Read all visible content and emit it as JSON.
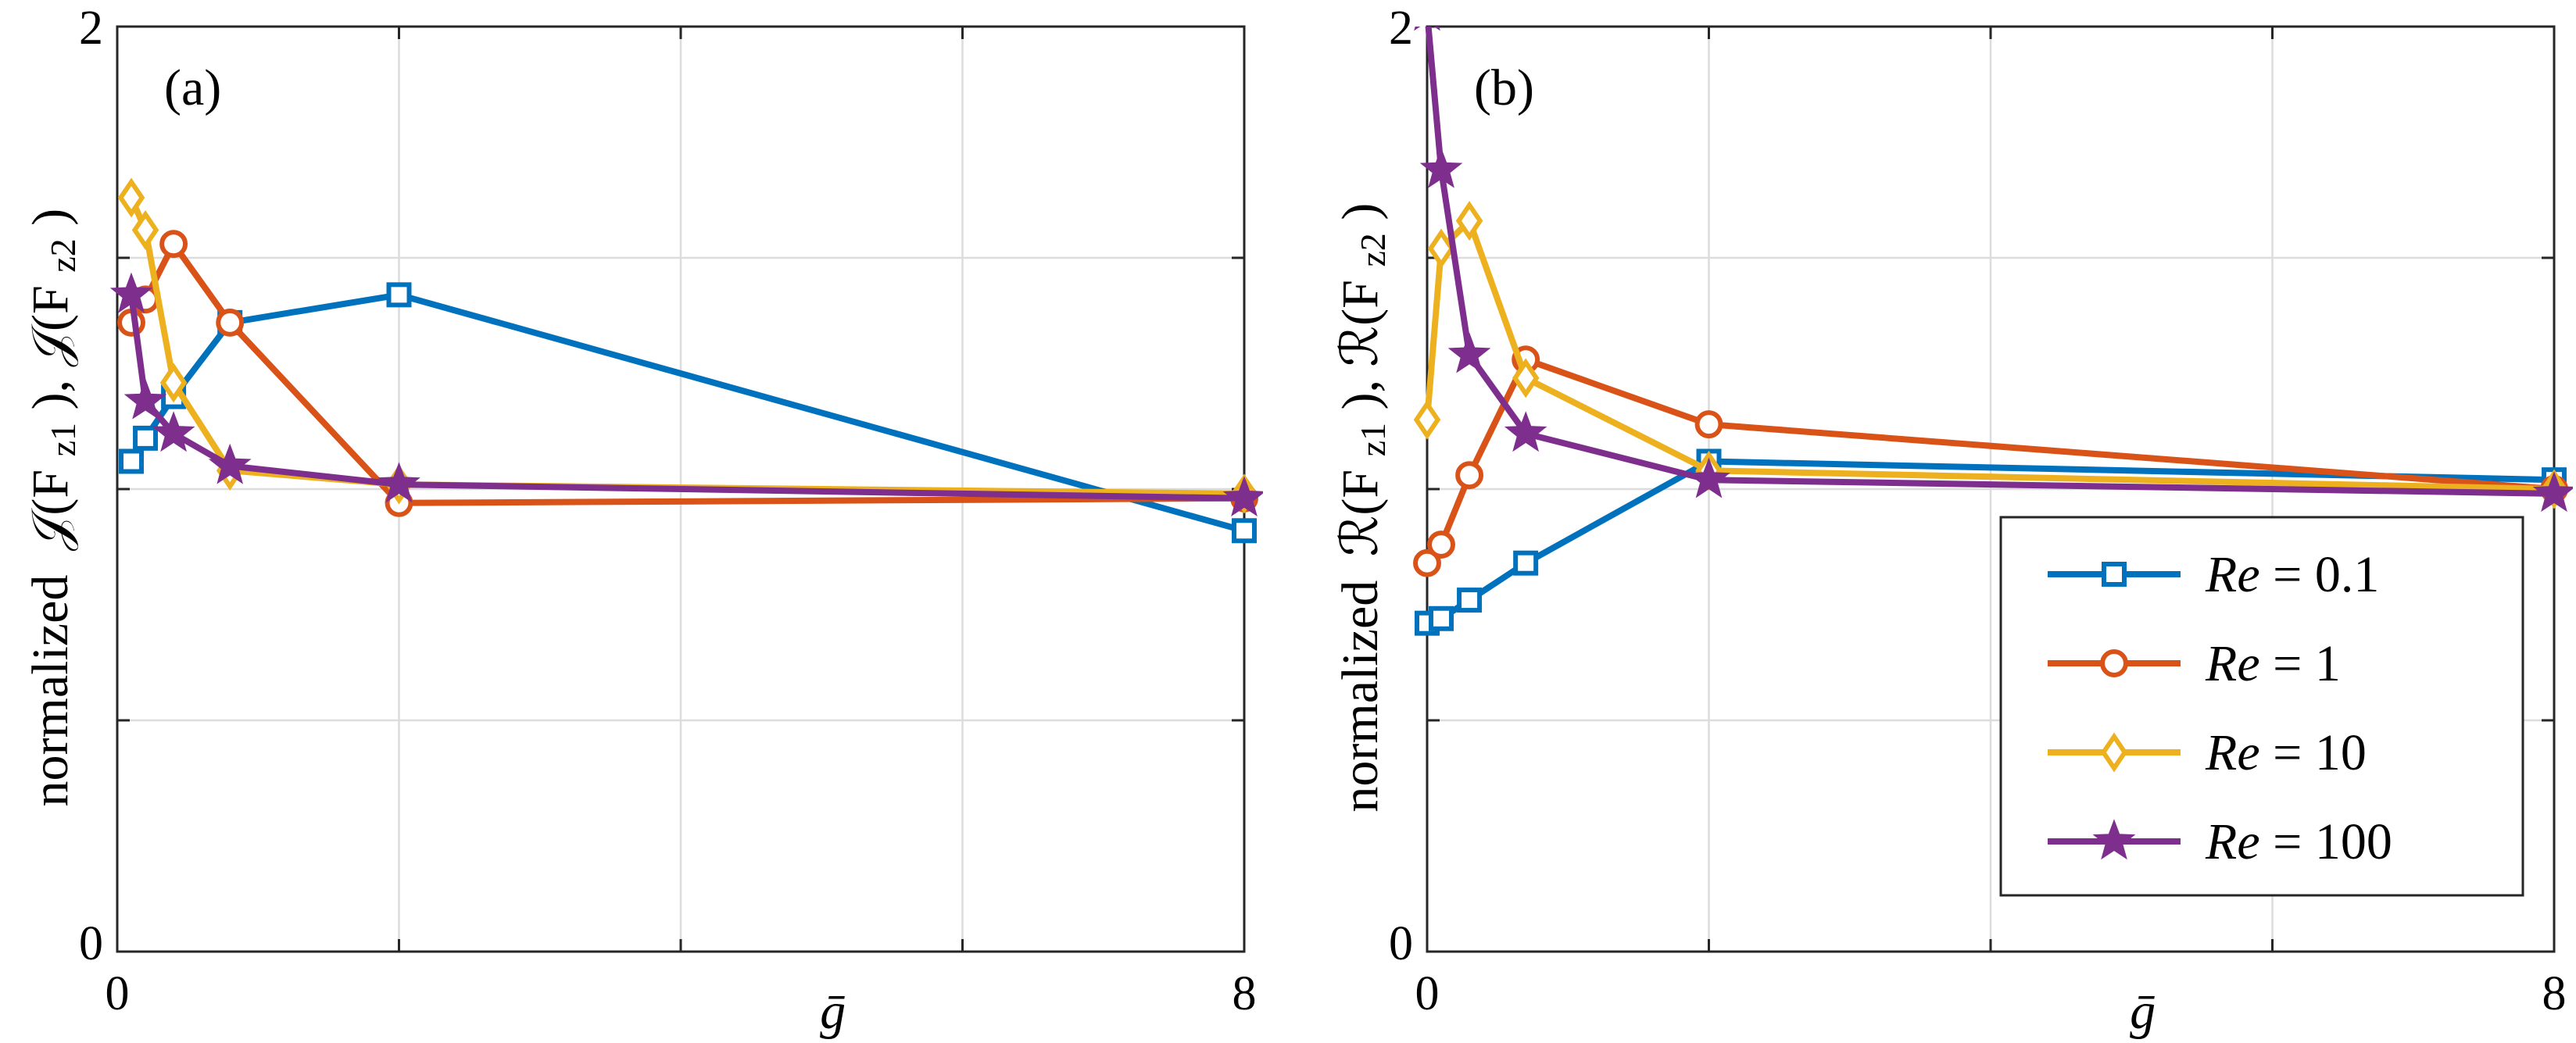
{
  "chart_data": [
    {
      "type": "line",
      "panel_label": "(a)",
      "ylabel": "normalized 𝒥(F_z1), 𝒥(F_z2)",
      "ylabel_prefix": "normalized",
      "ylabel_formula": "𝒥(F",
      "ylabel_sub1": "z1",
      "ylabel_mid": "), 𝒥(F",
      "ylabel_sub2": "z2",
      "ylabel_end": ")",
      "xlabel": "ḡ",
      "xlim": [
        0,
        8
      ],
      "ylim": [
        0,
        2
      ],
      "xticks": [
        "0",
        "8"
      ],
      "yticks": [
        "0",
        "2"
      ],
      "x_gridlines": [
        0,
        2,
        4,
        6,
        8
      ],
      "y_gridlines": [
        0,
        0.5,
        1,
        1.5,
        2
      ],
      "grid": true,
      "series": [
        {
          "name": "Re = 0.1",
          "color": "#0072BD",
          "marker": "square",
          "x": [
            0.1,
            0.2,
            0.4,
            0.8,
            2,
            8
          ],
          "y": [
            1.06,
            1.11,
            1.2,
            1.36,
            1.42,
            0.91
          ]
        },
        {
          "name": "Re = 1",
          "color": "#D95319",
          "marker": "circle",
          "x": [
            0.1,
            0.2,
            0.4,
            0.8,
            2,
            8
          ],
          "y": [
            1.36,
            1.41,
            1.53,
            1.36,
            0.97,
            0.98
          ]
        },
        {
          "name": "Re = 10",
          "color": "#EDB120",
          "marker": "diamond",
          "x": [
            0.1,
            0.2,
            0.4,
            0.8,
            2,
            8
          ],
          "y": [
            1.63,
            1.56,
            1.23,
            1.04,
            1.01,
            0.99
          ]
        },
        {
          "name": "Re = 100",
          "color": "#7E2F8E",
          "marker": "star",
          "x": [
            0.1,
            0.2,
            0.4,
            0.8,
            2,
            8
          ],
          "y": [
            1.42,
            1.19,
            1.12,
            1.05,
            1.01,
            0.98
          ]
        }
      ]
    },
    {
      "type": "line",
      "panel_label": "(b)",
      "ylabel": "normalized ℛ(F_z1), ℛ(F_z2)",
      "ylabel_prefix": "normalized",
      "ylabel_formula": "ℛ(F",
      "ylabel_sub1": "z1",
      "ylabel_mid": "), ℛ(F",
      "ylabel_sub2": "z2",
      "ylabel_end": ")",
      "xlabel": "ḡ",
      "xlim": [
        0,
        8
      ],
      "ylim": [
        0,
        2
      ],
      "xticks": [
        "0",
        "8"
      ],
      "yticks": [
        "0",
        "2"
      ],
      "x_gridlines": [
        0,
        2,
        4,
        6,
        8
      ],
      "y_gridlines": [
        0,
        0.5,
        1,
        1.5,
        2
      ],
      "grid": true,
      "legend": {
        "placement": "bottom-right",
        "entries": [
          {
            "prefix": "Re",
            "suffix": " = 0.1"
          },
          {
            "prefix": "Re",
            "suffix": " = 1"
          },
          {
            "prefix": "Re",
            "suffix": " = 10"
          },
          {
            "prefix": "Re",
            "suffix": " = 100"
          }
        ]
      },
      "series": [
        {
          "name": "Re = 0.1",
          "color": "#0072BD",
          "marker": "square",
          "x": [
            0.0,
            0.1,
            0.3,
            0.7,
            2,
            8
          ],
          "y": [
            0.71,
            0.72,
            0.76,
            0.84,
            1.06,
            1.02
          ]
        },
        {
          "name": "Re = 1",
          "color": "#D95319",
          "marker": "circle",
          "x": [
            0.0,
            0.1,
            0.3,
            0.7,
            2,
            8
          ],
          "y": [
            0.84,
            0.88,
            1.03,
            1.28,
            1.14,
            1.0
          ]
        },
        {
          "name": "Re = 10",
          "color": "#EDB120",
          "marker": "diamond",
          "x": [
            0.0,
            0.1,
            0.3,
            0.7,
            2,
            8
          ],
          "y": [
            1.15,
            1.52,
            1.58,
            1.24,
            1.04,
            1.0
          ]
        },
        {
          "name": "Re = 100",
          "color": "#7E2F8E",
          "marker": "star",
          "x": [
            0.0,
            0.1,
            0.3,
            0.7,
            2,
            8
          ],
          "y": [
            2.03,
            1.69,
            1.29,
            1.12,
            1.02,
            0.99
          ]
        }
      ]
    }
  ]
}
